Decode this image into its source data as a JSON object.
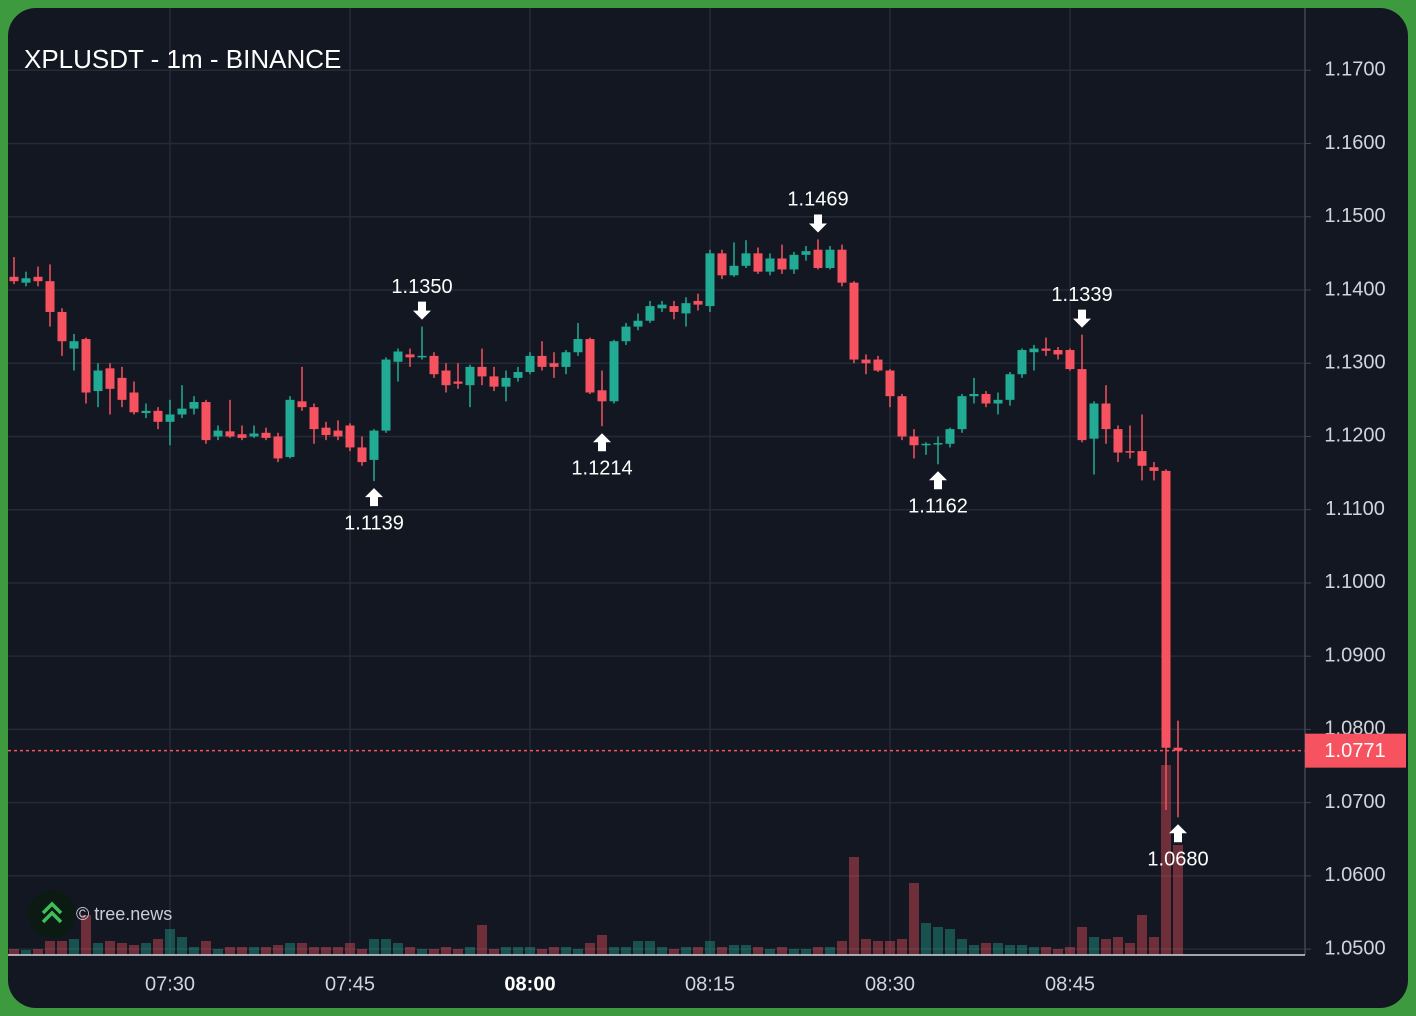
{
  "chart_data": {
    "type": "candlestick",
    "title": "XPLUSDT - 1m - BINANCE",
    "categories": [
      null,
      null,
      null,
      null,
      null,
      null,
      null,
      null,
      null,
      null,
      null,
      null,
      null,
      "07:30",
      null,
      null,
      null,
      null,
      null,
      null,
      null,
      null,
      null,
      null,
      null,
      null,
      null,
      null,
      "07:45",
      null,
      null,
      null,
      null,
      null,
      null,
      null,
      null,
      null,
      null,
      null,
      null,
      null,
      null,
      "08:00",
      null,
      null,
      null,
      null,
      null,
      null,
      null,
      null,
      null,
      null,
      null,
      null,
      null,
      null,
      "08:15",
      null,
      null,
      null,
      null,
      null,
      null,
      null,
      null,
      null,
      null,
      null,
      null,
      null,
      null,
      "08:30",
      null,
      null,
      null,
      null,
      null,
      null,
      null,
      null,
      null,
      null,
      null,
      null,
      null,
      null,
      "08:45",
      null,
      null,
      null,
      null,
      null,
      null,
      null,
      null,
      null
    ],
    "open": [
      1.1418,
      1.141,
      1.1418,
      1.1412,
      1.137,
      1.132,
      1.1333,
      1.1262,
      1.1293,
      1.128,
      1.126,
      1.1232,
      1.1235,
      1.122,
      1.123,
      1.1238,
      1.1247,
      1.12,
      1.1207,
      1.1203,
      1.12,
      1.1205,
      1.12,
      1.1172,
      1.1248,
      1.124,
      1.1212,
      1.1208,
      1.1215,
      1.1185,
      1.1168,
      1.1208,
      1.1302,
      1.1312,
      1.1308,
      1.131,
      1.129,
      1.1275,
      1.127,
      1.1295,
      1.1282,
      1.1268,
      1.128,
      1.1288,
      1.131,
      1.13,
      1.1295,
      1.1315,
      1.1333,
      1.1263,
      1.1248,
      1.133,
      1.135,
      1.1358,
      1.1375,
      1.1378,
      1.1368,
      1.1385,
      1.1378,
      1.145,
      1.142,
      1.1433,
      1.145,
      1.1425,
      1.1443,
      1.1428,
      1.1448,
      1.1455,
      1.143,
      1.1455,
      1.141,
      1.1305,
      1.1305,
      1.129,
      1.1255,
      1.12,
      1.1188,
      1.1189,
      1.119,
      1.121,
      1.1255,
      1.1258,
      1.1245,
      1.125,
      1.1285,
      1.1315,
      1.132,
      1.1318,
      1.1318,
      1.1292,
      1.1197,
      1.1245,
      1.121,
      1.118,
      1.118,
      1.1158,
      1.1153,
      1.0775
    ],
    "high": [
      1.1445,
      1.1425,
      1.1432,
      1.1435,
      1.1375,
      1.134,
      1.1335,
      1.13,
      1.13,
      1.1295,
      1.1275,
      1.1245,
      1.124,
      1.125,
      1.127,
      1.1255,
      1.125,
      1.1215,
      1.125,
      1.1215,
      1.1215,
      1.1212,
      1.1205,
      1.1255,
      1.1295,
      1.1245,
      1.122,
      1.1222,
      1.1218,
      1.12,
      1.121,
      1.1308,
      1.132,
      1.132,
      1.135,
      1.1315,
      1.13,
      1.13,
      1.1298,
      1.132,
      1.1295,
      1.129,
      1.1295,
      1.1315,
      1.133,
      1.1315,
      1.1318,
      1.1355,
      1.1335,
      1.129,
      1.1332,
      1.1355,
      1.1368,
      1.1385,
      1.1385,
      1.1385,
      1.139,
      1.1395,
      1.1455,
      1.1455,
      1.1465,
      1.1468,
      1.1458,
      1.145,
      1.1462,
      1.1452,
      1.146,
      1.1469,
      1.146,
      1.1462,
      1.1412,
      1.1312,
      1.131,
      1.1292,
      1.1258,
      1.121,
      1.1192,
      1.12,
      1.1212,
      1.1258,
      1.128,
      1.1262,
      1.126,
      1.1288,
      1.132,
      1.1325,
      1.1335,
      1.1322,
      1.132,
      1.1339,
      1.1248,
      1.127,
      1.1215,
      1.1215,
      1.123,
      1.1165,
      1.1155,
      1.0812
    ],
    "low": [
      1.1408,
      1.1405,
      1.1405,
      1.135,
      1.131,
      1.129,
      1.1245,
      1.124,
      1.123,
      1.124,
      1.123,
      1.1225,
      1.121,
      1.1188,
      1.1225,
      1.123,
      1.119,
      1.1195,
      1.1198,
      1.1195,
      1.1198,
      1.1195,
      1.1165,
      1.117,
      1.1235,
      1.119,
      1.1195,
      1.1195,
      1.118,
      1.116,
      1.1139,
      1.1205,
      1.1275,
      1.1295,
      1.1305,
      1.128,
      1.126,
      1.1265,
      1.124,
      1.127,
      1.1262,
      1.1248,
      1.1275,
      1.1285,
      1.129,
      1.128,
      1.1285,
      1.131,
      1.1258,
      1.1214,
      1.1245,
      1.1325,
      1.1345,
      1.1355,
      1.137,
      1.136,
      1.135,
      1.1372,
      1.137,
      1.1415,
      1.1418,
      1.143,
      1.1422,
      1.142,
      1.1422,
      1.1422,
      1.144,
      1.1428,
      1.1428,
      1.1405,
      1.13,
      1.1285,
      1.1288,
      1.124,
      1.1195,
      1.117,
      1.1175,
      1.1162,
      1.1185,
      1.1205,
      1.1245,
      1.124,
      1.123,
      1.1242,
      1.128,
      1.129,
      1.131,
      1.1305,
      1.129,
      1.1192,
      1.1148,
      1.119,
      1.1165,
      1.117,
      1.114,
      1.114,
      1.069,
      1.068
    ],
    "close": [
      1.1412,
      1.1416,
      1.1412,
      1.137,
      1.133,
      1.133,
      1.126,
      1.129,
      1.1265,
      1.125,
      1.1233,
      1.1235,
      1.122,
      1.123,
      1.1238,
      1.1247,
      1.1195,
      1.1208,
      1.12,
      1.1198,
      1.1204,
      1.1198,
      1.117,
      1.125,
      1.124,
      1.121,
      1.1202,
      1.12,
      1.1185,
      1.1165,
      1.1208,
      1.1305,
      1.1316,
      1.1308,
      1.131,
      1.1285,
      1.127,
      1.1272,
      1.1295,
      1.1282,
      1.1268,
      1.128,
      1.1288,
      1.131,
      1.1295,
      1.1295,
      1.1315,
      1.1333,
      1.126,
      1.1248,
      1.133,
      1.135,
      1.1358,
      1.1378,
      1.138,
      1.137,
      1.1382,
      1.138,
      1.145,
      1.142,
      1.1433,
      1.145,
      1.1425,
      1.1443,
      1.1428,
      1.1448,
      1.1453,
      1.143,
      1.1455,
      1.141,
      1.1305,
      1.13,
      1.129,
      1.1255,
      1.12,
      1.1188,
      1.119,
      1.1191,
      1.121,
      1.1255,
      1.1258,
      1.1245,
      1.125,
      1.1285,
      1.1318,
      1.132,
      1.1317,
      1.1312,
      1.1292,
      1.1195,
      1.1245,
      1.121,
      1.1178,
      1.1178,
      1.116,
      1.1153,
      1.0775,
      1.0771
    ],
    "volume": [
      6,
      5,
      6,
      14,
      14,
      16,
      40,
      12,
      14,
      12,
      10,
      12,
      16,
      26,
      18,
      8,
      14,
      6,
      8,
      8,
      8,
      8,
      10,
      12,
      12,
      8,
      8,
      8,
      12,
      6,
      16,
      16,
      12,
      8,
      6,
      6,
      8,
      6,
      8,
      30,
      6,
      8,
      8,
      8,
      6,
      8,
      8,
      6,
      12,
      20,
      8,
      8,
      14,
      14,
      8,
      6,
      8,
      8,
      14,
      8,
      10,
      10,
      8,
      6,
      8,
      6,
      6,
      8,
      8,
      14,
      98,
      16,
      14,
      14,
      16,
      72,
      32,
      28,
      26,
      16,
      10,
      12,
      12,
      10,
      10,
      8,
      8,
      6,
      8,
      28,
      18,
      16,
      18,
      12,
      40,
      18,
      190,
      110
    ],
    "up_color": "#22ab94",
    "down_color": "#f7525f",
    "ylim": [
      1.0492,
      1.1785
    ],
    "yticks": [
      {
        "value": 1.05,
        "label": "1.0500"
      },
      {
        "value": 1.06,
        "label": "1.0600"
      },
      {
        "value": 1.07,
        "label": "1.0700"
      },
      {
        "value": 1.08,
        "label": "1.0800"
      },
      {
        "value": 1.09,
        "label": "1.0900"
      },
      {
        "value": 1.1,
        "label": "1.1000"
      },
      {
        "value": 1.11,
        "label": "1.1100"
      },
      {
        "value": 1.12,
        "label": "1.1200"
      },
      {
        "value": 1.13,
        "label": "1.1300"
      },
      {
        "value": 1.14,
        "label": "1.1400"
      },
      {
        "value": 1.15,
        "label": "1.1500"
      },
      {
        "value": 1.16,
        "label": "1.1600"
      },
      {
        "value": 1.17,
        "label": "1.1700"
      }
    ],
    "grid": true,
    "last_price": 1.0771,
    "annotations": [
      {
        "candle": 30,
        "kind": "low",
        "value": 1.1139
      },
      {
        "candle": 34,
        "kind": "high",
        "value": 1.135,
        "label": "1.1350"
      },
      {
        "candle": 49,
        "kind": "low",
        "value": 1.1214
      },
      {
        "candle": 67,
        "kind": "high",
        "value": 1.1469
      },
      {
        "candle": 77,
        "kind": "low",
        "value": 1.1162
      },
      {
        "candle": 89,
        "kind": "high",
        "value": 1.1339
      },
      {
        "candle": 97,
        "kind": "low",
        "value": 1.068,
        "label": "1.0680"
      }
    ]
  },
  "watermark": "© tree.news"
}
